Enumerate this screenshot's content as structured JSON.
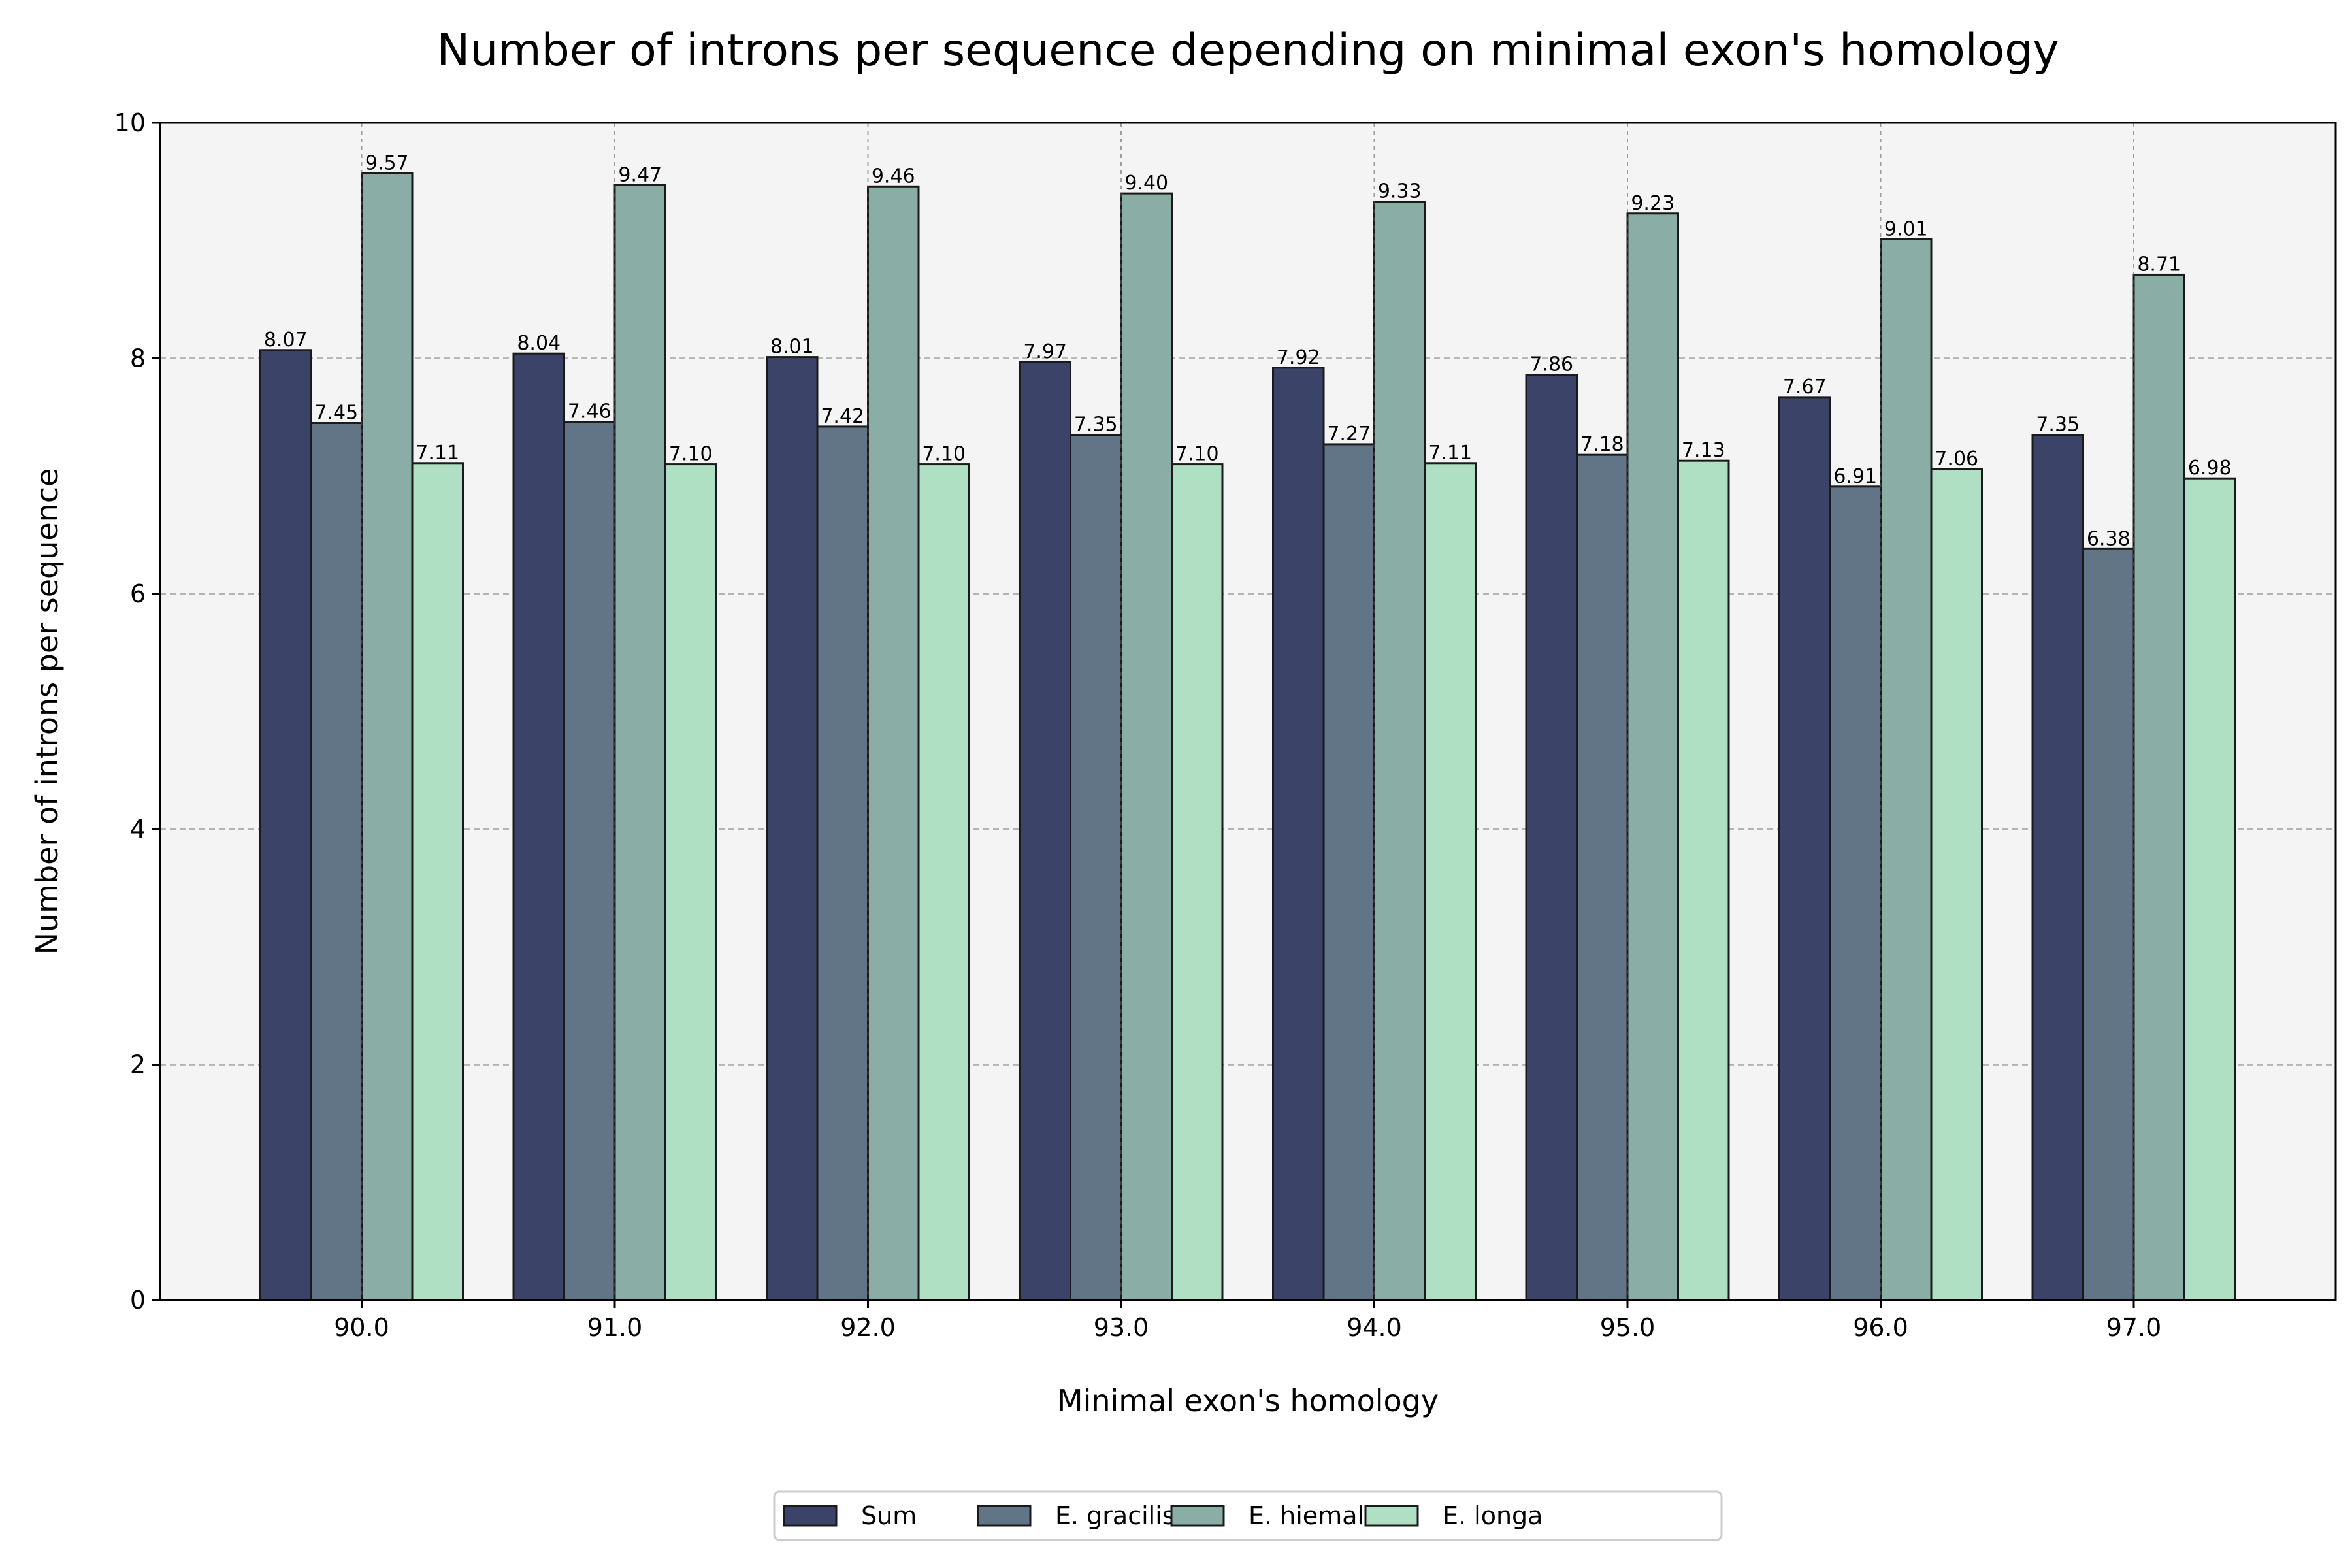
{
  "chart_data": {
    "type": "bar",
    "title": "Number of introns per sequence depending on minimal exon's homology",
    "xlabel": "Minimal exon's homology",
    "ylabel": "Number of introns per sequence",
    "categories": [
      "90.0",
      "91.0",
      "92.0",
      "93.0",
      "94.0",
      "95.0",
      "96.0",
      "97.0"
    ],
    "ylim": [
      0,
      10
    ],
    "yticks": [
      "0",
      "2",
      "4",
      "6",
      "8",
      "10"
    ],
    "grid": true,
    "legend_position": "bottom-center",
    "series": [
      {
        "name": "Sum",
        "color": "#3b4468",
        "values": [
          8.07,
          8.04,
          8.01,
          7.97,
          7.92,
          7.86,
          7.67,
          7.35
        ],
        "labels": [
          "8.07",
          "8.04",
          "8.01",
          "7.97",
          "7.92",
          "7.86",
          "7.67",
          "7.35"
        ]
      },
      {
        "name": "E. gracilis",
        "color": "#627586",
        "values": [
          7.45,
          7.46,
          7.42,
          7.35,
          7.27,
          7.18,
          6.91,
          6.38
        ],
        "labels": [
          "7.45",
          "7.46",
          "7.42",
          "7.35",
          "7.27",
          "7.18",
          "6.91",
          "6.38"
        ]
      },
      {
        "name": "E. hiemalis",
        "color": "#8aaea6",
        "values": [
          9.57,
          9.47,
          9.46,
          9.4,
          9.33,
          9.23,
          9.01,
          8.71
        ],
        "labels": [
          "9.57",
          "9.47",
          "9.46",
          "9.40",
          "9.33",
          "9.23",
          "9.01",
          "8.71"
        ]
      },
      {
        "name": "E. longa",
        "color": "#afe0c3",
        "values": [
          7.11,
          7.1,
          7.1,
          7.1,
          7.11,
          7.13,
          7.06,
          6.98
        ],
        "labels": [
          "7.11",
          "7.10",
          "7.10",
          "7.10",
          "7.11",
          "7.13",
          "7.06",
          "6.98"
        ]
      }
    ],
    "plot_background": "#f4f4f4",
    "edge_color": "#1a1a1a",
    "grid_color": "#b4b4b4"
  }
}
